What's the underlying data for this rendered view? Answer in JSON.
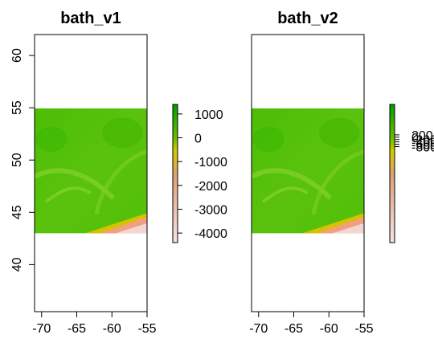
{
  "chart_data": [
    {
      "type": "heatmap",
      "title": "bath_v1",
      "xlim": [
        -71,
        -55
      ],
      "ylim": [
        35.5,
        62
      ],
      "x_ticks": [
        "-70",
        "-65",
        "-60",
        "-55"
      ],
      "y_ticks": [
        "40",
        "45",
        "50",
        "55",
        "60"
      ],
      "extent": {
        "x": [
          -71,
          -55
        ],
        "y": [
          43,
          55
        ]
      },
      "legend": {
        "placement": "right",
        "range": [
          -4400,
          1400
        ],
        "ticks": [
          "1000",
          "0",
          "-1000",
          "-2000",
          "-3000",
          "-4000"
        ]
      },
      "colors": {
        "land": "#29b800",
        "shelf": "#52c00a",
        "slope": "#d7c100",
        "deep": "#f0a080",
        "abyss": "#f3d6d1"
      }
    },
    {
      "type": "heatmap",
      "title": "bath_v2",
      "xlim": [
        -71,
        -55
      ],
      "ylim": [
        35.5,
        62
      ],
      "x_ticks": [
        "-70",
        "-65",
        "-60",
        "-55"
      ],
      "y_ticks": [],
      "extent": {
        "x": [
          -71,
          -55
        ],
        "y": [
          43,
          55
        ]
      },
      "legend": {
        "placement": "right",
        "range": [
          -9000,
          2800
        ],
        "ticks": [
          "200",
          "0",
          "-200",
          "-400",
          "-600",
          "-800"
        ]
      },
      "colors": {
        "land": "#29b800",
        "shelf": "#52c00a",
        "slope": "#d7c100",
        "deep": "#f0a080",
        "abyss": "#f3d6d1"
      }
    }
  ]
}
